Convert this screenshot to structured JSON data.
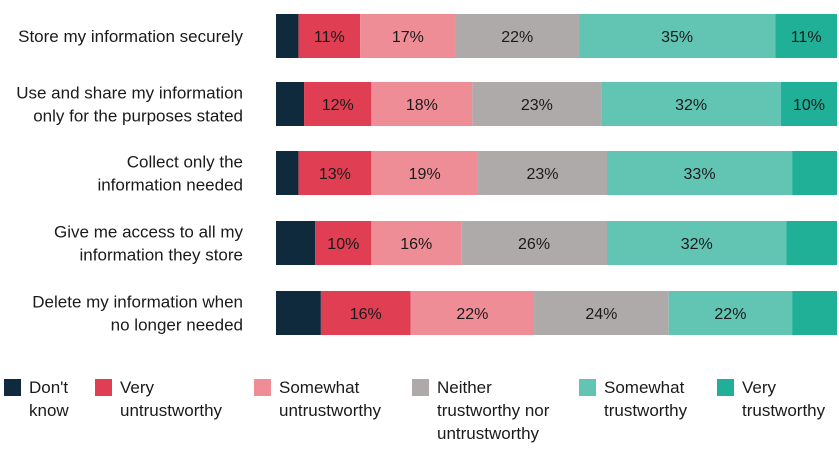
{
  "chart_data": {
    "type": "bar",
    "orientation": "horizontal",
    "stacked": true,
    "normalized": true,
    "categories": [
      "Store my information securely",
      "Use and share my information\nonly for the purposes stated",
      "Collect only the\ninformation needed",
      "Give me access to all my\ninformation they store",
      "Delete my information when\nno longer needed"
    ],
    "series": [
      {
        "name": "Don't\nknow",
        "color": "#0f2a3c",
        "values": [
          4,
          5,
          4,
          7,
          8
        ],
        "labels": [
          "",
          "",
          "",
          "",
          ""
        ]
      },
      {
        "name": "Very\nuntrustworthy",
        "color": "#e03e52",
        "values": [
          11,
          12,
          13,
          10,
          16
        ],
        "labels": [
          "11%",
          "12%",
          "13%",
          "10%",
          "16%"
        ]
      },
      {
        "name": "Somewhat\nuntrustworthy",
        "color": "#ef8d96",
        "values": [
          17,
          18,
          19,
          16,
          22
        ],
        "labels": [
          "17%",
          "18%",
          "19%",
          "16%",
          "22%"
        ]
      },
      {
        "name": "Neither\ntrustworthy nor\nuntrustworthy",
        "color": "#aeaaaa",
        "values": [
          22,
          23,
          23,
          26,
          24
        ],
        "labels": [
          "22%",
          "23%",
          "23%",
          "26%",
          "24%"
        ]
      },
      {
        "name": "Somewhat\ntrustworthy",
        "color": "#62c5b4",
        "values": [
          35,
          32,
          33,
          32,
          22
        ],
        "labels": [
          "35%",
          "32%",
          "33%",
          "32%",
          "22%"
        ]
      },
      {
        "name": "Very\ntrustworthy",
        "color": "#20b097",
        "values": [
          11,
          10,
          8,
          9,
          8
        ],
        "labels": [
          "11%",
          "10%",
          "",
          "",
          ""
        ]
      }
    ],
    "xlim": [
      0,
      100
    ],
    "grid": false,
    "legend_position": "bottom"
  }
}
